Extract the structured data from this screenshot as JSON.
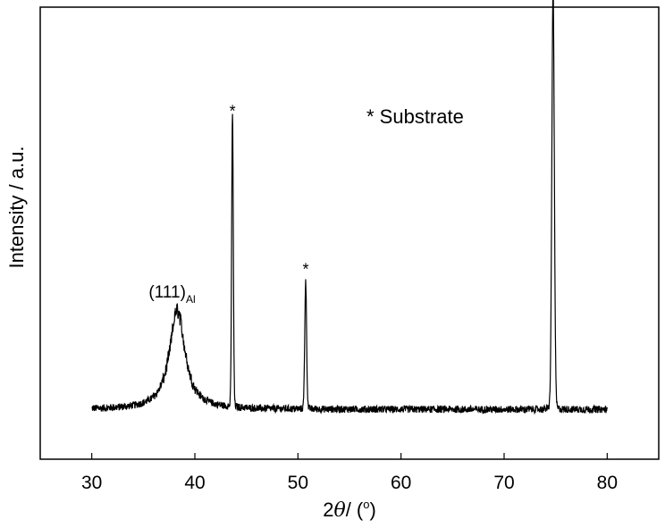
{
  "chart_data": {
    "type": "line",
    "title": "",
    "xlabel": {
      "prefix": "2",
      "theta": "θ",
      "mid": "/ (",
      "degree": "o",
      "suffix": ")"
    },
    "ylabel": "Intensity / a.u.",
    "xlim": [
      25,
      85
    ],
    "ylim": [
      0,
      1.0
    ],
    "y_tick_labels_shown": false,
    "x_ticks": [
      30,
      40,
      50,
      60,
      70,
      80
    ],
    "x_tick_labels": [
      "30",
      "40",
      "50",
      "60",
      "70",
      "80"
    ],
    "grid": false,
    "line_color": "#000000",
    "baseline": 0.11,
    "noise_amplitude": 0.008,
    "x_range": [
      30,
      80
    ],
    "peaks": [
      {
        "center": 38.3,
        "height": 0.22,
        "width": 0.9,
        "label_main": "(111)",
        "label_sub": "Al"
      },
      {
        "center": 43.65,
        "height": 0.62,
        "width": 0.08,
        "label": "*"
      },
      {
        "center": 50.75,
        "height": 0.27,
        "width": 0.09,
        "label": "*"
      },
      {
        "center": 74.75,
        "height": 0.89,
        "width": 0.12,
        "label": "*"
      }
    ],
    "legend_text": "* Substrate",
    "legend_position": "top-center"
  }
}
